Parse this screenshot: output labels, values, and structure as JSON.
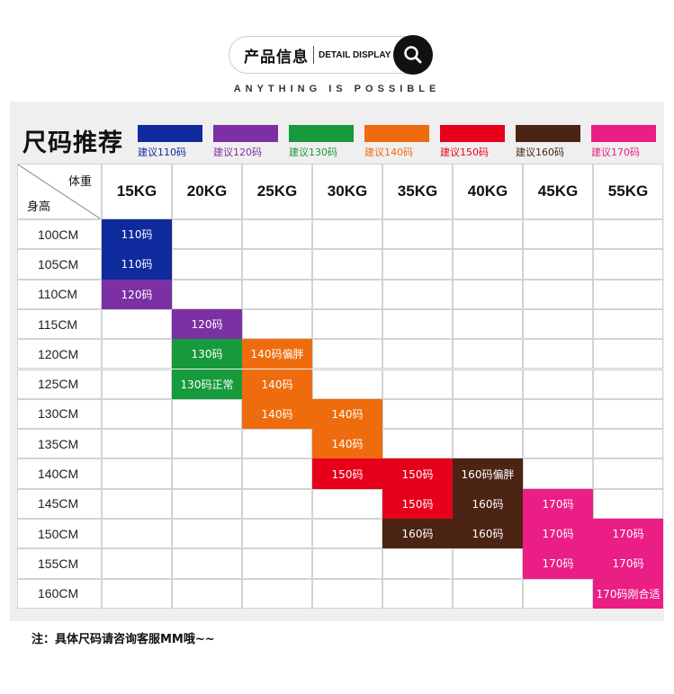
{
  "header": {
    "title": "产品信息",
    "subtitle": "DETAIL DISPLAY",
    "icon": "search-icon",
    "tagline": "ANYTHING IS POSSIBLE"
  },
  "chart": {
    "title": "尺码推荐",
    "legend": [
      {
        "label": "建议110码",
        "color": "#0f2a9c"
      },
      {
        "label": "建议120码",
        "color": "#7b30a4"
      },
      {
        "label": "建议130码",
        "color": "#169a3c"
      },
      {
        "label": "建议140码",
        "color": "#ef6c0e"
      },
      {
        "label": "建议150码",
        "color": "#e6001c"
      },
      {
        "label": "建议160码",
        "color": "#4b2414"
      },
      {
        "label": "建议170码",
        "color": "#ea1e85"
      }
    ],
    "corner_weight": "体重",
    "corner_height": "身高",
    "weights": [
      "15KG",
      "20KG",
      "25KG",
      "30KG",
      "35KG",
      "40KG",
      "45KG",
      "55KG"
    ],
    "rows": [
      {
        "height": "100CM",
        "cells": [
          {
            "col": 0,
            "text": "110码",
            "size": "110"
          }
        ]
      },
      {
        "height": "105CM",
        "cells": [
          {
            "col": 0,
            "text": "110码",
            "size": "110"
          }
        ]
      },
      {
        "height": "110CM",
        "cells": [
          {
            "col": 0,
            "text": "120码",
            "size": "120"
          }
        ]
      },
      {
        "height": "115CM",
        "cells": [
          {
            "col": 1,
            "text": "120码",
            "size": "120"
          }
        ]
      },
      {
        "height": "120CM",
        "cells": [
          {
            "col": 1,
            "text": "130码",
            "size": "130"
          },
          {
            "col": 2,
            "text": "140码偏胖",
            "size": "140"
          }
        ]
      },
      {
        "height": "125CM",
        "cells": [
          {
            "col": 1,
            "text": "130码正常",
            "size": "130"
          },
          {
            "col": 2,
            "text": "140码",
            "size": "140"
          }
        ]
      },
      {
        "height": "130CM",
        "cells": [
          {
            "col": 2,
            "text": "140码",
            "size": "140"
          },
          {
            "col": 3,
            "text": "140码",
            "size": "140"
          }
        ]
      },
      {
        "height": "135CM",
        "cells": [
          {
            "col": 3,
            "text": "140码",
            "size": "140"
          }
        ]
      },
      {
        "height": "140CM",
        "cells": [
          {
            "col": 3,
            "text": "150码",
            "size": "150"
          },
          {
            "col": 4,
            "text": "150码",
            "size": "150"
          },
          {
            "col": 5,
            "text": "160码偏胖",
            "size": "160"
          }
        ]
      },
      {
        "height": "145CM",
        "cells": [
          {
            "col": 4,
            "text": "150码",
            "size": "150"
          },
          {
            "col": 5,
            "text": "160码",
            "size": "160"
          },
          {
            "col": 6,
            "text": "170码",
            "size": "170"
          }
        ]
      },
      {
        "height": "150CM",
        "cells": [
          {
            "col": 4,
            "text": "160码",
            "size": "160"
          },
          {
            "col": 5,
            "text": "160码",
            "size": "160"
          },
          {
            "col": 6,
            "text": "170码",
            "size": "170"
          },
          {
            "col": 7,
            "text": "170码",
            "size": "170"
          }
        ]
      },
      {
        "height": "155CM",
        "cells": [
          {
            "col": 6,
            "text": "170码",
            "size": "170"
          },
          {
            "col": 7,
            "text": "170码",
            "size": "170"
          }
        ]
      },
      {
        "height": "160CM",
        "cells": [
          {
            "col": 7,
            "text": "170码刚合适",
            "size": "170"
          }
        ]
      }
    ],
    "size_colors": {
      "110": "#0f2a9c",
      "120": "#7b30a4",
      "130": "#169a3c",
      "140": "#ef6c0e",
      "150": "#e6001c",
      "160": "#4b2414",
      "170": "#ea1e85"
    }
  },
  "note": "注：具体尺码请咨询客服MM哦~~"
}
